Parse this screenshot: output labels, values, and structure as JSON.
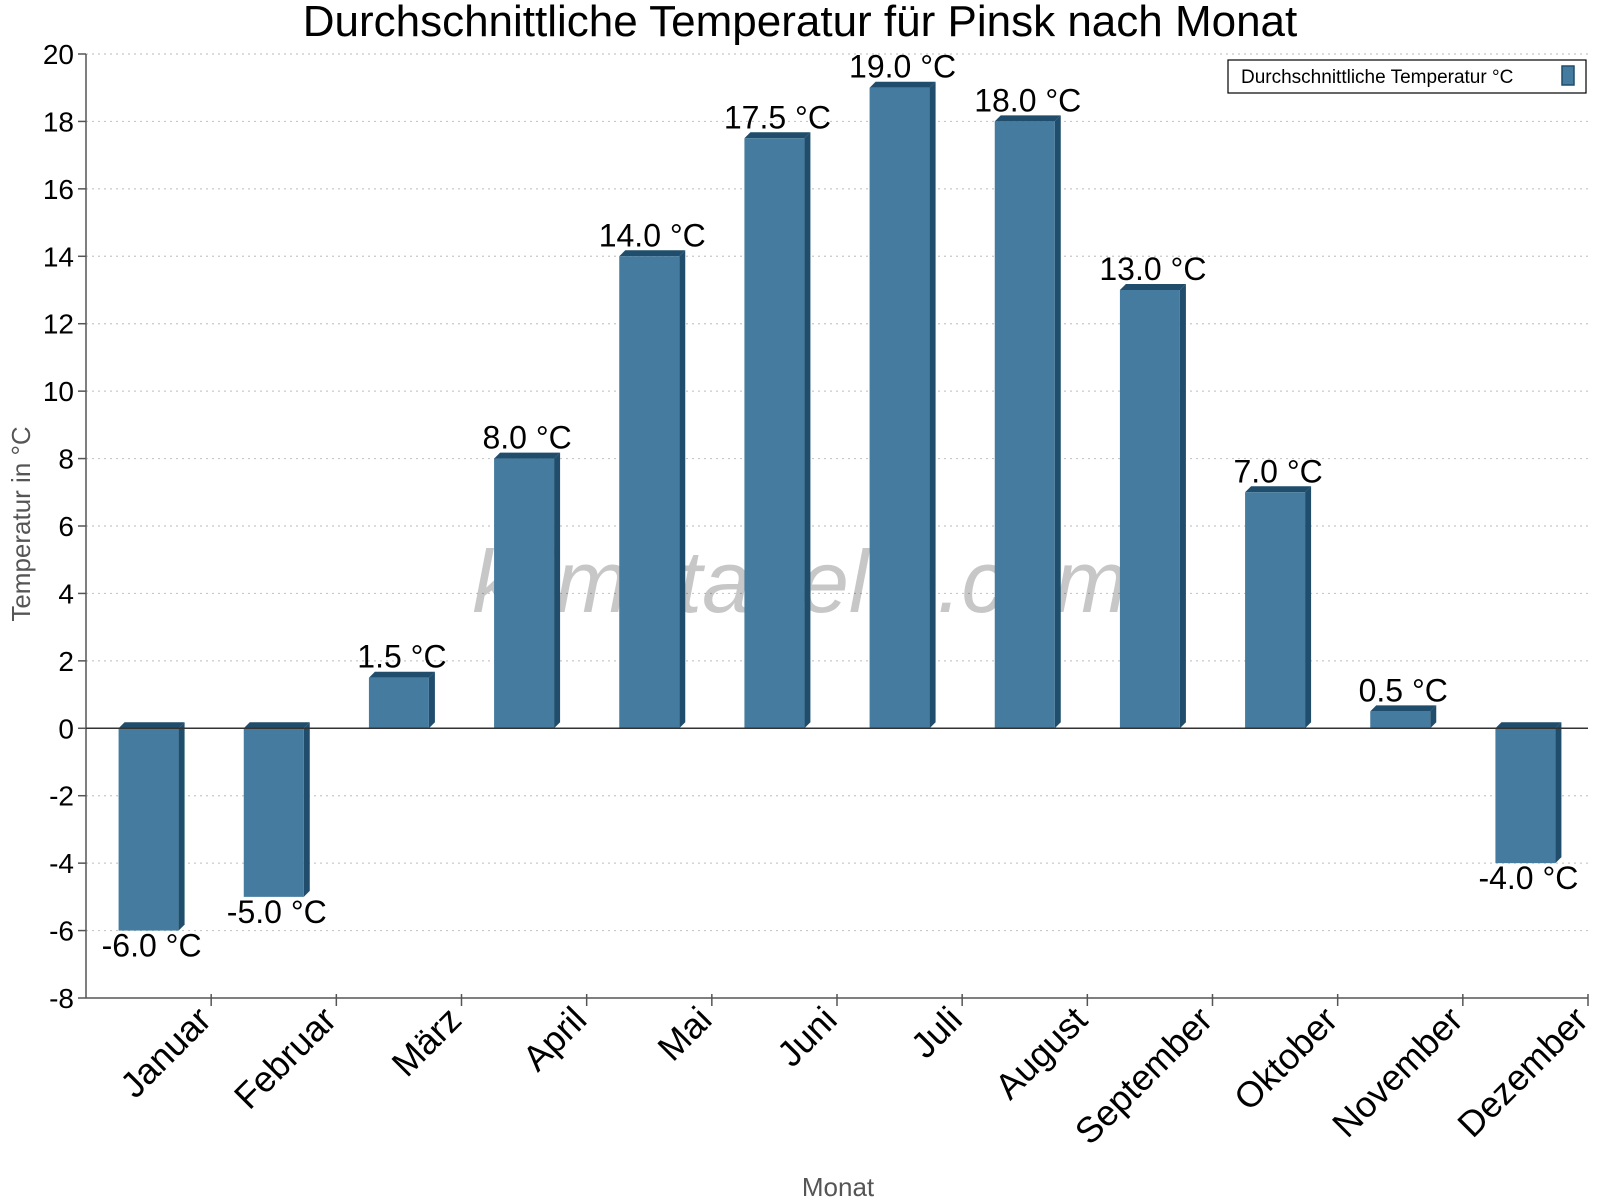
{
  "chart_data": {
    "type": "bar",
    "title": "Durchschnittliche Temperatur für Pinsk nach Monat",
    "xlabel": "Monat",
    "ylabel": "Temperatur in °C",
    "categories": [
      "Januar",
      "Februar",
      "März",
      "April",
      "Mai",
      "Juni",
      "Juli",
      "August",
      "September",
      "Oktober",
      "November",
      "Dezember"
    ],
    "series": [
      {
        "name": "Durchschnittliche Temperatur °C",
        "values": [
          -6.0,
          -5.0,
          1.5,
          8.0,
          14.0,
          17.5,
          19.0,
          18.0,
          13.0,
          7.0,
          0.5,
          -4.0
        ],
        "data_labels": [
          "-6.0 °C",
          "-5.0 °C",
          "1.5 °C",
          "8.0 °C",
          "14.0 °C",
          "17.5 °C",
          "19.0 °C",
          "18.0 °C",
          "13.0 °C",
          "7.0 °C",
          "0.5 °C",
          "-4.0 °C"
        ]
      }
    ],
    "ylim": [
      -8,
      20
    ],
    "yticks": [
      -8,
      -6,
      -4,
      -2,
      0,
      2,
      4,
      6,
      8,
      10,
      12,
      14,
      16,
      18,
      20
    ],
    "grid": true,
    "legend_position": "top-right",
    "colors": {
      "bar": "#447b9e",
      "bar_side": "#1f4d6b",
      "bar_top": "#1f4d6b",
      "grid": "#c8c8c8",
      "axis": "#555555"
    },
    "watermark": "klimatabelle.com"
  }
}
